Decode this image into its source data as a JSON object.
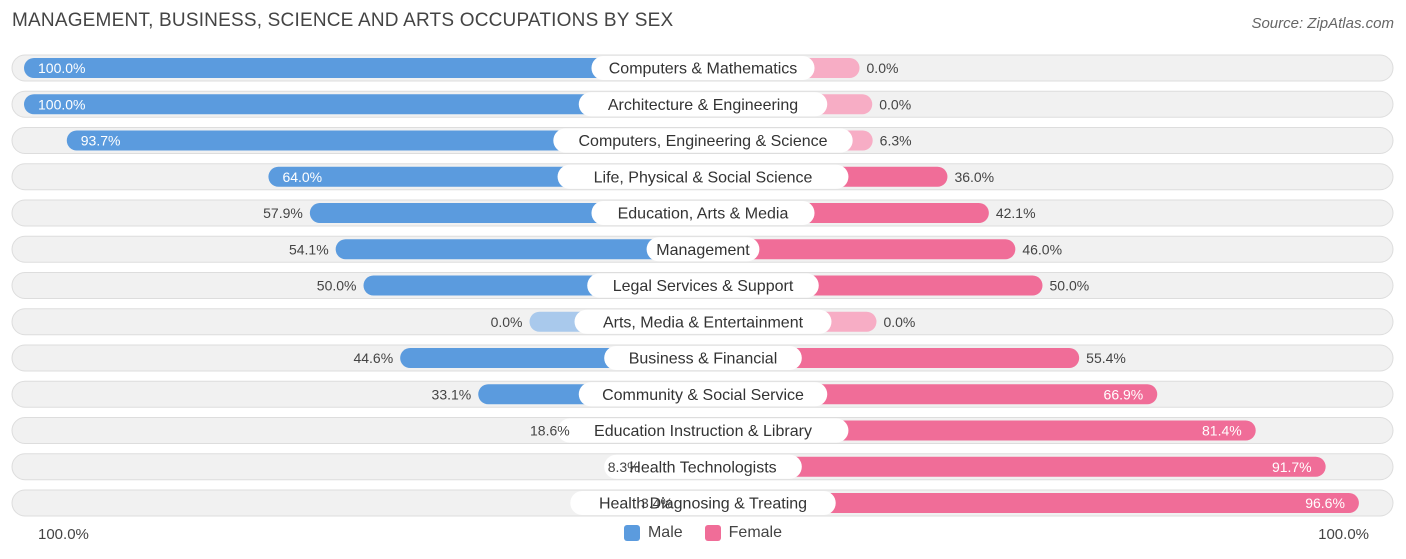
{
  "header": {
    "title": "MANAGEMENT, BUSINESS, SCIENCE AND ARTS OCCUPATIONS BY SEX",
    "source": "Source: ZipAtlas.com"
  },
  "legend": {
    "male": "Male",
    "female": "Female"
  },
  "axis": {
    "left_label": "100.0%",
    "right_label": "100.0%"
  },
  "colors": {
    "male_strong": "#5b9bde",
    "male_light": "#a9c9ec",
    "female_strong": "#f06d98",
    "female_light": "#f7adc5",
    "track": "#f1f1f1",
    "track_border": "#dddddd"
  },
  "chart_data": {
    "type": "bar",
    "orientation": "horizontal-diverging",
    "title": "MANAGEMENT, BUSINESS, SCIENCE AND ARTS OCCUPATIONS BY SEX",
    "xlim": [
      -100,
      100
    ],
    "categories": [
      "Computers & Mathematics",
      "Architecture & Engineering",
      "Computers, Engineering & Science",
      "Life, Physical & Social Science",
      "Education, Arts & Media",
      "Management",
      "Legal Services & Support",
      "Arts, Media & Entertainment",
      "Business & Financial",
      "Community & Social Service",
      "Education Instruction & Library",
      "Health Technologists",
      "Health Diagnosing & Treating"
    ],
    "series": [
      {
        "name": "Male",
        "values": [
          100.0,
          100.0,
          93.7,
          64.0,
          57.9,
          54.1,
          50.0,
          0.0,
          44.6,
          33.1,
          18.6,
          8.3,
          3.4
        ],
        "labels": [
          "100.0%",
          "100.0%",
          "93.7%",
          "64.0%",
          "57.9%",
          "54.1%",
          "50.0%",
          "0.0%",
          "44.6%",
          "33.1%",
          "18.6%",
          "8.3%",
          "3.4%"
        ]
      },
      {
        "name": "Female",
        "values": [
          0.0,
          0.0,
          6.3,
          36.0,
          42.1,
          46.0,
          50.0,
          0.0,
          55.4,
          66.9,
          81.4,
          91.7,
          96.6
        ],
        "labels": [
          "0.0%",
          "0.0%",
          "6.3%",
          "36.0%",
          "42.1%",
          "46.0%",
          "50.0%",
          "0.0%",
          "55.4%",
          "66.9%",
          "81.4%",
          "91.7%",
          "96.6%"
        ]
      }
    ]
  }
}
